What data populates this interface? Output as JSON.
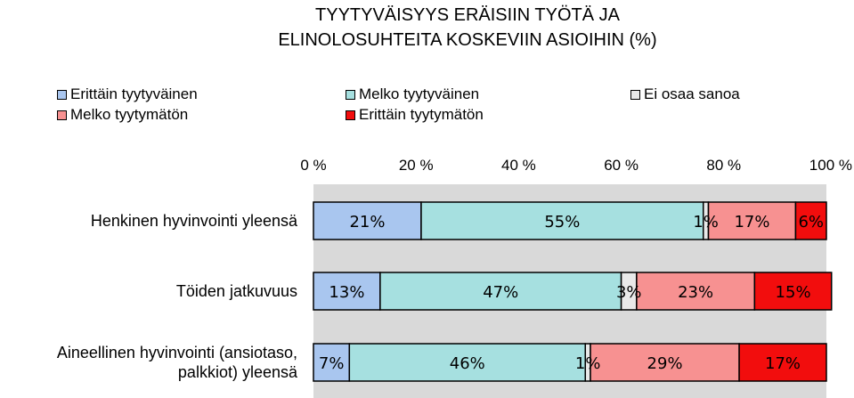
{
  "chart_data": {
    "type": "bar",
    "orientation": "horizontal",
    "stacked": "percent",
    "title_lines": [
      "TYYTYVÄISYYS ERÄISIIN TYÖTÄ JA",
      "ELINOLOSUHTEITA KOSKEVIIN ASIOIHIN (%)"
    ],
    "categories": [
      [
        "Henkinen hyvinvointi yleensä"
      ],
      [
        "Töiden jatkuvuus"
      ],
      [
        "Aineellinen hyvinvointi (ansiotaso,",
        "palkkiot) yleensä"
      ]
    ],
    "xticks": [
      "0 %",
      "20 %",
      "40 %",
      "60 %",
      "80 %",
      "100 %"
    ],
    "xlim": [
      0,
      100
    ],
    "axis_position": "top",
    "legend_position": "top",
    "series": [
      {
        "name": "Erittäin tyytyväinen",
        "color": "#a9c6ef",
        "values": [
          21,
          13,
          7
        ],
        "labels": [
          "21%",
          "13%",
          "7%"
        ]
      },
      {
        "name": "Melko tyytyväinen",
        "color": "#a6e0e0",
        "values": [
          55,
          47,
          46
        ],
        "labels": [
          "55%",
          "47%",
          "46%"
        ]
      },
      {
        "name": "Ei osaa sanoa",
        "color": "#e9e9e9",
        "values": [
          1,
          3,
          1
        ],
        "labels": [
          "1%",
          "3%",
          "1%"
        ]
      },
      {
        "name": "Melko tyytymätön",
        "color": "#f79191",
        "values": [
          17,
          23,
          29
        ],
        "labels": [
          "17%",
          "23%",
          "29%"
        ]
      },
      {
        "name": "Erittäin tyytymätön",
        "color": "#f20d0d",
        "values": [
          6,
          15,
          17
        ],
        "labels": [
          "6%",
          "15%",
          "17%"
        ]
      }
    ],
    "plot_background": "#d9d9d9"
  }
}
